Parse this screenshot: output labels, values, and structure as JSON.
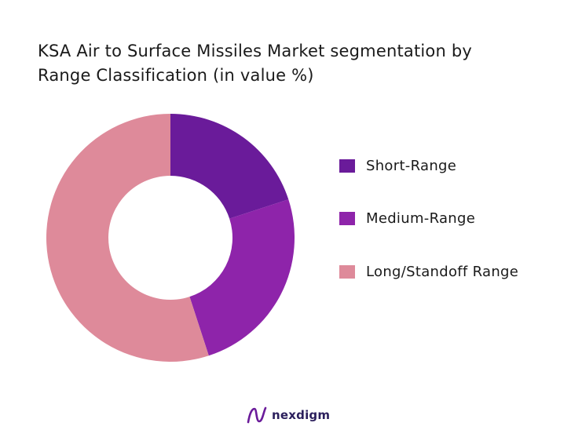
{
  "chart_data": {
    "type": "pie",
    "donut": true,
    "title": [
      "KSA Air to Surface Missiles Market segmentation by",
      "Range Classification (in value %)"
    ],
    "categories": [
      "Short-Range",
      "Medium-Range",
      "Long/Standoff Range"
    ],
    "values": [
      20,
      25,
      55
    ],
    "colors": [
      "#6a1b9a",
      "#8e24aa",
      "#de8a9a"
    ],
    "legend_position": "right"
  },
  "brand": {
    "name": "nexdigm",
    "color": "#2b1f5c"
  }
}
